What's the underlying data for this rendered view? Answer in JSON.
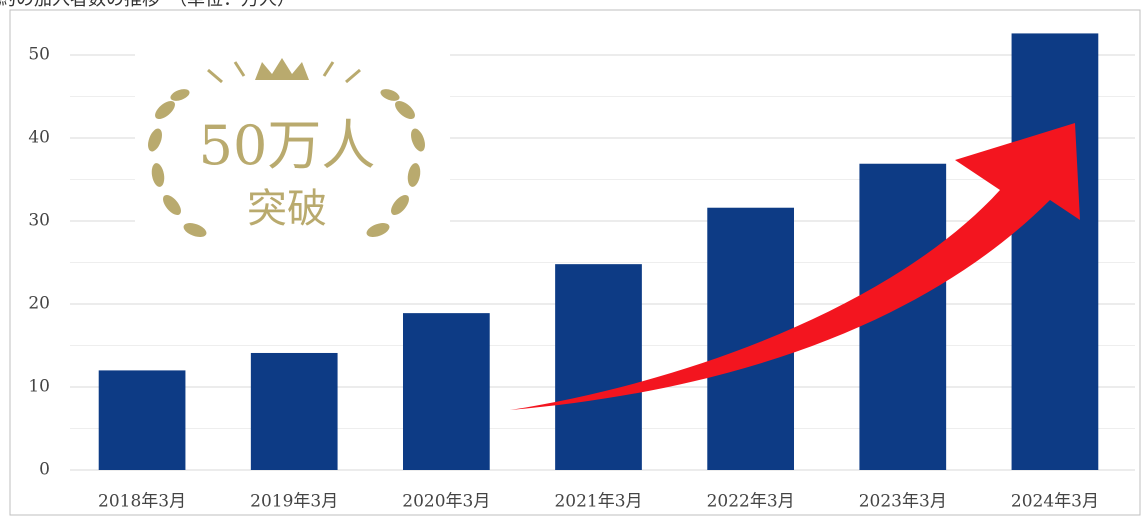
{
  "chart_data": {
    "type": "bar",
    "title": "約の加入者数の推移　（単位：万人）",
    "badge": {
      "line1": "50万人",
      "line2": "突破"
    },
    "categories": [
      "2018年3月",
      "2019年3月",
      "2020年3月",
      "2021年3月",
      "2022年3月",
      "2023年3月",
      "2024年3月"
    ],
    "values": [
      12.0,
      14.1,
      18.9,
      24.8,
      31.6,
      36.9,
      52.6
    ],
    "color": "#0d3b85",
    "ylim": [
      0,
      55
    ],
    "yticks": [
      0,
      10,
      20,
      30,
      40,
      50
    ],
    "minor_yticks": [
      5,
      15,
      25,
      35,
      45
    ],
    "grid": true
  }
}
